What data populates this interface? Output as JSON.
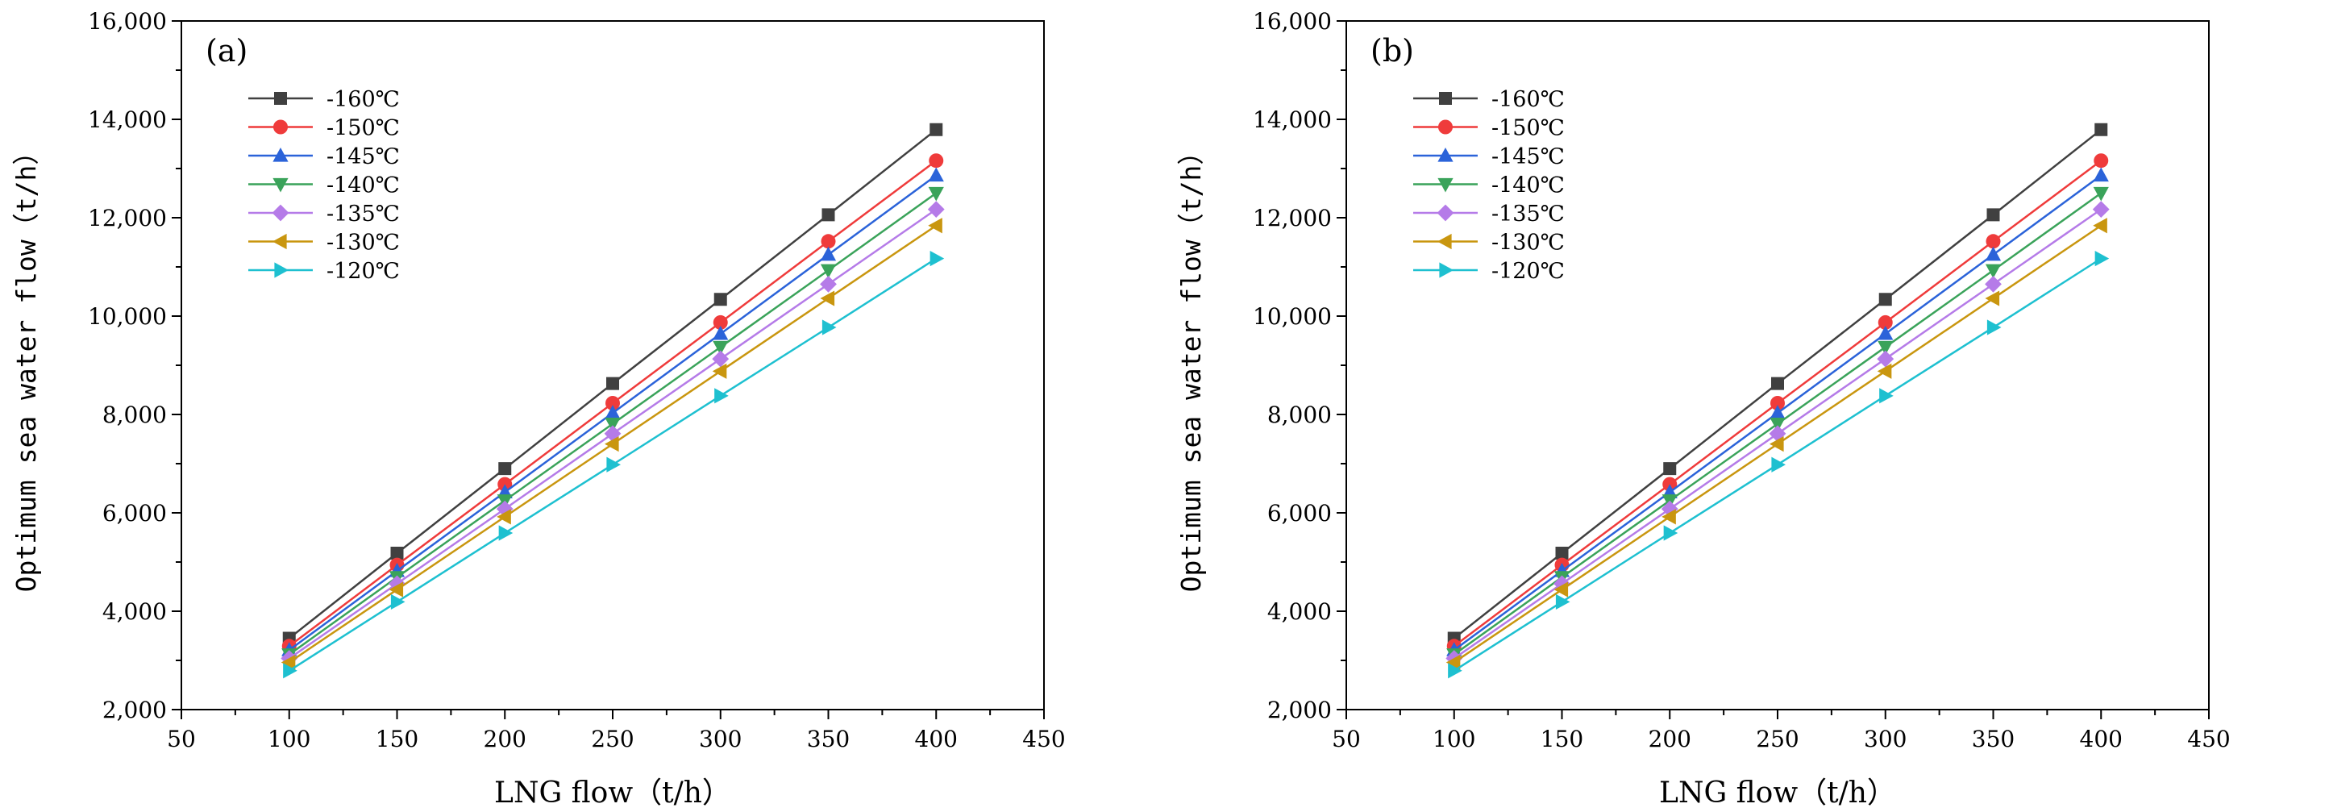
{
  "chart_data": [
    {
      "type": "line",
      "panel_label": "(a)",
      "xlabel": "LNG flow（t/h）",
      "ylabel": "Optimum sea water flow（t/h）",
      "xlim": [
        50,
        450
      ],
      "ylim": [
        2000,
        16000
      ],
      "x_ticks": [
        "50",
        "100",
        "150",
        "200",
        "250",
        "300",
        "350",
        "400",
        "450"
      ],
      "y_ticks": [
        "2,000",
        "4,000",
        "6,000",
        "8,000",
        "10,000",
        "12,000",
        "14,000",
        "16,000"
      ],
      "legend_position": "top-left",
      "x": [
        100,
        150,
        200,
        250,
        300,
        350,
        400
      ],
      "series": [
        {
          "name": "-160℃",
          "color": "#404040",
          "marker": "square",
          "values": [
            3450,
            5180,
            6900,
            8630,
            10340,
            12060,
            13790
          ]
        },
        {
          "name": "-150℃",
          "color": "#ef3b3b",
          "marker": "circle",
          "values": [
            3290,
            4940,
            6580,
            8230,
            9870,
            11520,
            13160
          ]
        },
        {
          "name": "-145℃",
          "color": "#2b63d9",
          "marker": "triangle-up",
          "values": [
            3210,
            4820,
            6420,
            8030,
            9640,
            11250,
            12860
          ]
        },
        {
          "name": "-140℃",
          "color": "#3aa35a",
          "marker": "triangle-down",
          "values": [
            3120,
            4690,
            6250,
            7810,
            9370,
            10930,
            12500
          ]
        },
        {
          "name": "-135℃",
          "color": "#b57be8",
          "marker": "diamond",
          "values": [
            3040,
            4560,
            6080,
            7610,
            9130,
            10650,
            12170
          ]
        },
        {
          "name": "-130℃",
          "color": "#c9960f",
          "marker": "triangle-left",
          "values": [
            2960,
            4440,
            5920,
            7400,
            8880,
            10360,
            11840
          ]
        },
        {
          "name": "-120℃",
          "color": "#1ec0d0",
          "marker": "triangle-right",
          "values": [
            2790,
            4190,
            5590,
            6980,
            8380,
            9770,
            11170
          ]
        }
      ]
    },
    {
      "type": "line",
      "panel_label": "(b)",
      "xlabel": "LNG flow（t/h）",
      "ylabel": "Optimum sea water flow（t/h）",
      "xlim": [
        50,
        450
      ],
      "ylim": [
        2000,
        16000
      ],
      "x_ticks": [
        "50",
        "100",
        "150",
        "200",
        "250",
        "300",
        "350",
        "400",
        "450"
      ],
      "y_ticks": [
        "2,000",
        "4,000",
        "6,000",
        "8,000",
        "10,000",
        "12,000",
        "14,000",
        "16,000"
      ],
      "legend_position": "top-left",
      "x": [
        100,
        150,
        200,
        250,
        300,
        350,
        400
      ],
      "series": [
        {
          "name": "-160℃",
          "color": "#404040",
          "marker": "square",
          "values": [
            3450,
            5180,
            6900,
            8630,
            10340,
            12060,
            13790
          ]
        },
        {
          "name": "-150℃",
          "color": "#ef3b3b",
          "marker": "circle",
          "values": [
            3290,
            4940,
            6580,
            8230,
            9870,
            11520,
            13160
          ]
        },
        {
          "name": "-145℃",
          "color": "#2b63d9",
          "marker": "triangle-up",
          "values": [
            3210,
            4820,
            6420,
            8030,
            9640,
            11250,
            12860
          ]
        },
        {
          "name": "-140℃",
          "color": "#3aa35a",
          "marker": "triangle-down",
          "values": [
            3120,
            4690,
            6250,
            7810,
            9370,
            10930,
            12500
          ]
        },
        {
          "name": "-135℃",
          "color": "#b57be8",
          "marker": "diamond",
          "values": [
            3040,
            4560,
            6080,
            7610,
            9130,
            10650,
            12170
          ]
        },
        {
          "name": "-130℃",
          "color": "#c9960f",
          "marker": "triangle-left",
          "values": [
            2960,
            4440,
            5920,
            7400,
            8880,
            10360,
            11840
          ]
        },
        {
          "name": "-120℃",
          "color": "#1ec0d0",
          "marker": "triangle-right",
          "values": [
            2790,
            4190,
            5590,
            6980,
            8380,
            9770,
            11170
          ]
        }
      ]
    }
  ]
}
